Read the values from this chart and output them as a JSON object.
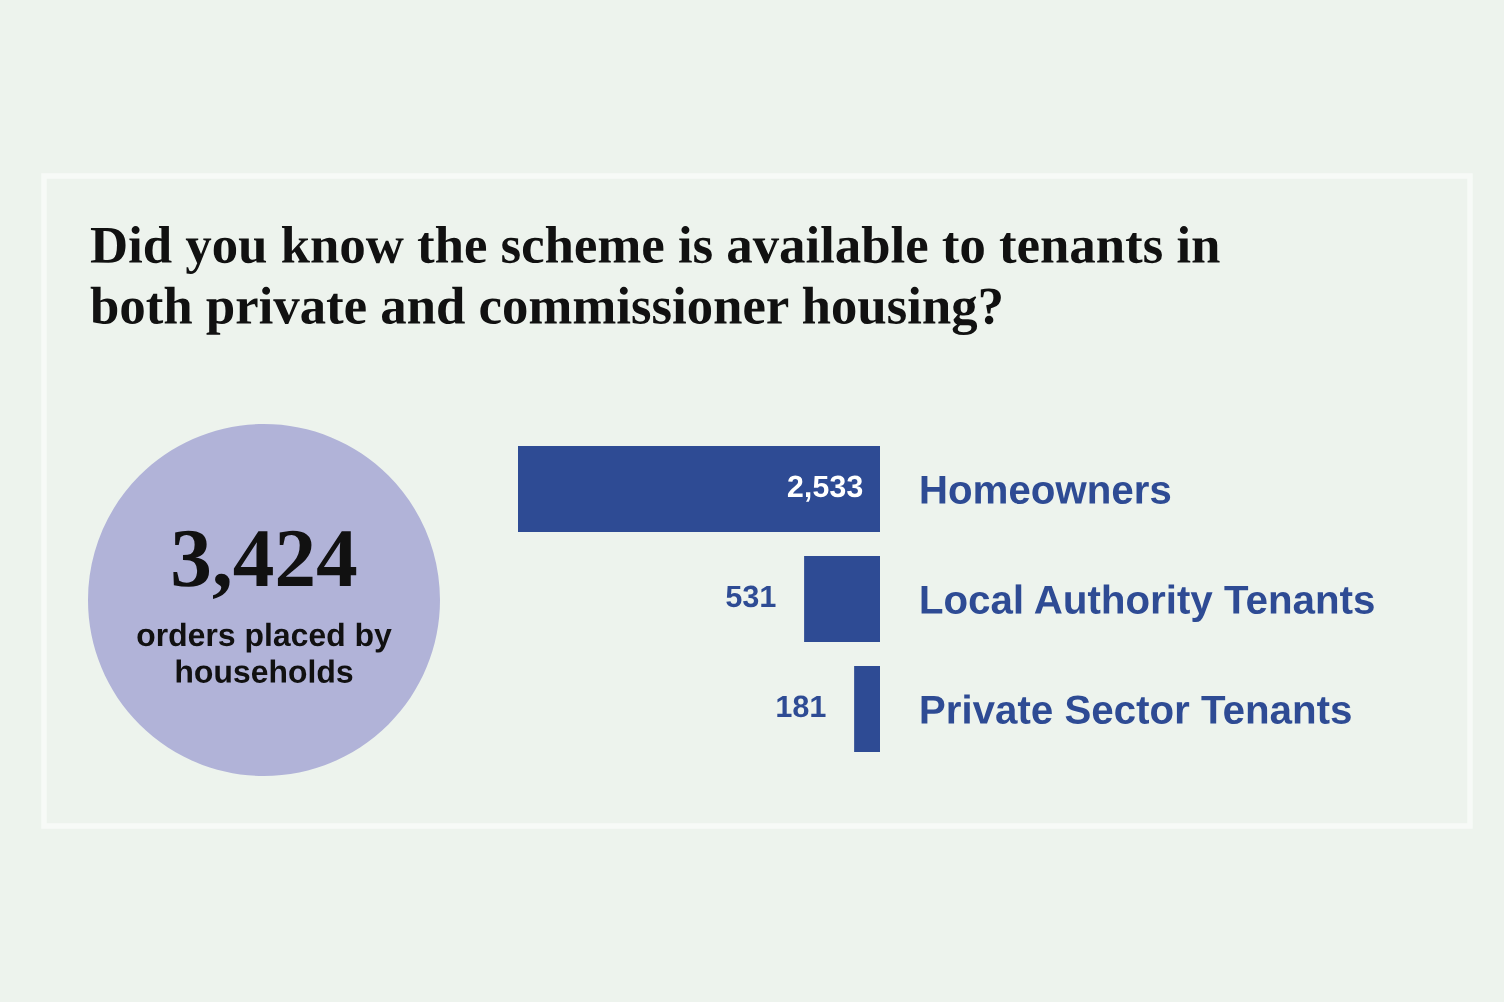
{
  "chart_data": {
    "type": "bar",
    "orientation": "horizontal",
    "title": "Did you know the scheme is available to tenants in both private and commissioner housing?",
    "categories": [
      "Homeowners",
      "Local Authority Tenants",
      "Private Sector Tenants"
    ],
    "values": [
      2533,
      531,
      181
    ],
    "value_labels": [
      "2,533",
      "531",
      "181"
    ],
    "color": "#2e4b94",
    "tick_labels": "y",
    "grid": false,
    "legend": false,
    "annotations": [
      "3,424",
      "orders placed by households"
    ]
  }
}
